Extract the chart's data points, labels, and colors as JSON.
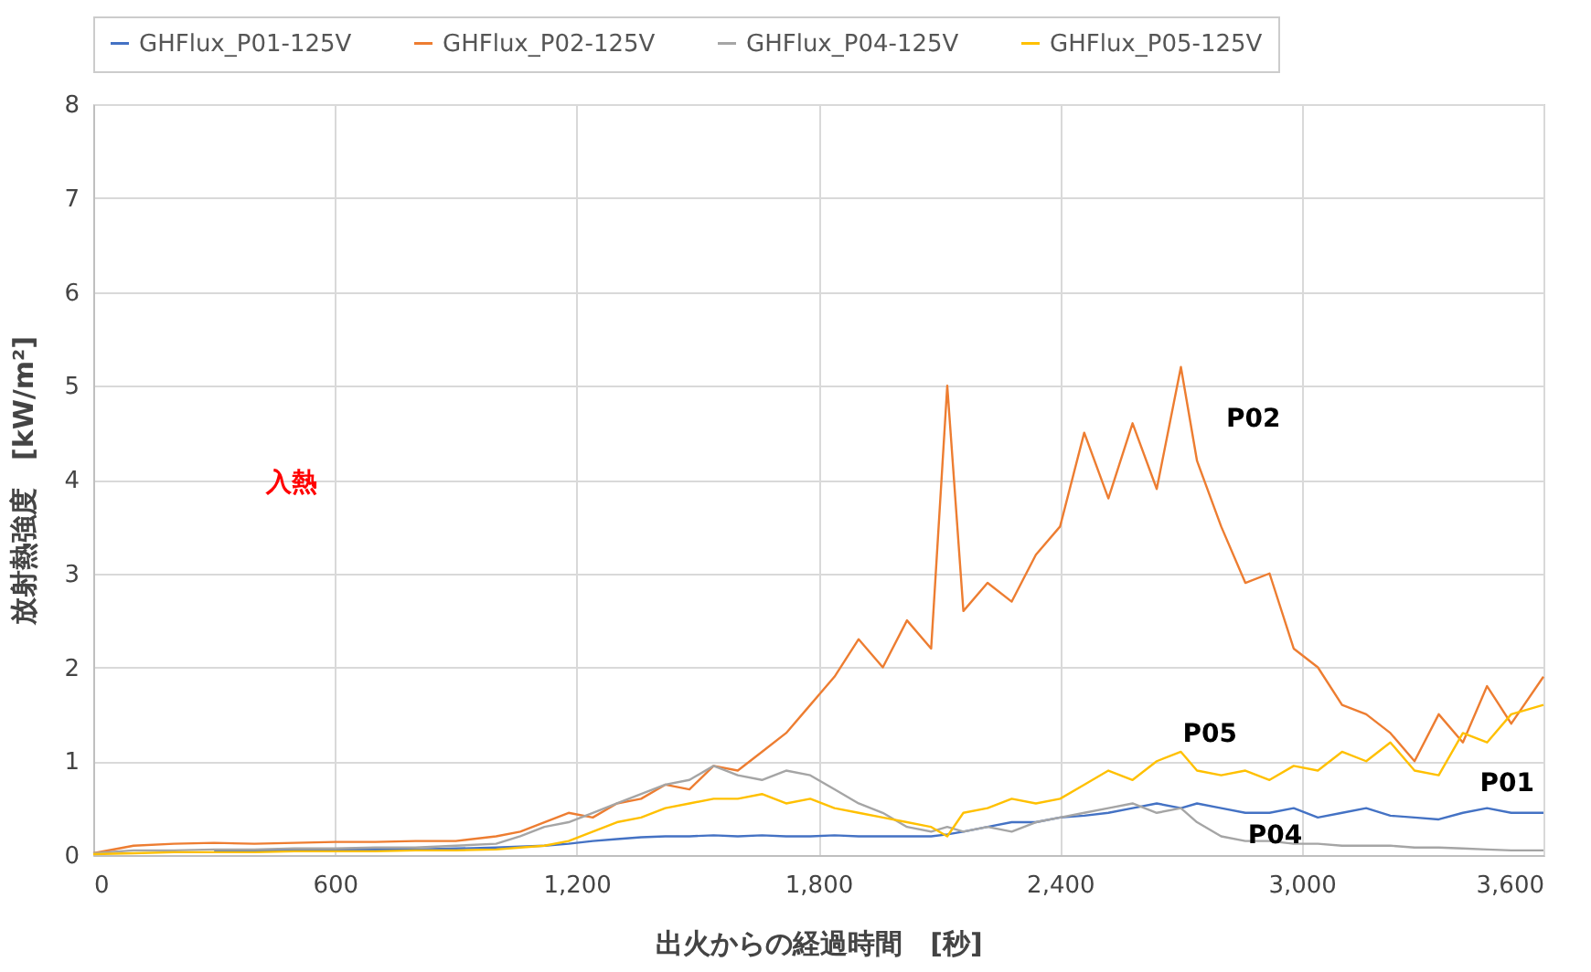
{
  "chart_data": {
    "type": "line",
    "xlabel": "出火からの経過時間　[秒]",
    "ylabel": "放射熱強度　[kW/m²]",
    "x": [
      0,
      100,
      200,
      300,
      400,
      500,
      600,
      700,
      800,
      900,
      1000,
      1060,
      1120,
      1180,
      1240,
      1300,
      1360,
      1420,
      1480,
      1540,
      1600,
      1660,
      1720,
      1780,
      1840,
      1900,
      1960,
      2020,
      2080,
      2120,
      2160,
      2220,
      2280,
      2340,
      2400,
      2460,
      2520,
      2580,
      2640,
      2700,
      2740,
      2800,
      2860,
      2920,
      2980,
      3040,
      3100,
      3160,
      3220,
      3280,
      3340,
      3400,
      3460,
      3520,
      3600
    ],
    "series": [
      {
        "name": "GHFlux_P01-125V",
        "color": "#4472c4",
        "values": [
          null,
          null,
          null,
          0.05,
          0.05,
          0.05,
          0.06,
          0.06,
          0.06,
          0.07,
          0.08,
          0.09,
          0.1,
          0.12,
          0.15,
          0.17,
          0.19,
          0.2,
          0.2,
          0.21,
          0.2,
          0.21,
          0.2,
          0.2,
          0.21,
          0.2,
          0.2,
          0.2,
          0.2,
          0.22,
          0.25,
          0.3,
          0.35,
          0.35,
          0.4,
          0.42,
          0.45,
          0.5,
          0.55,
          0.5,
          0.55,
          0.5,
          0.45,
          0.45,
          0.5,
          0.4,
          0.45,
          0.5,
          0.42,
          0.4,
          0.38,
          0.45,
          0.5,
          0.45,
          0.45
        ]
      },
      {
        "name": "GHFlux_P02-125V",
        "color": "#ed7d31",
        "values": [
          0.02,
          0.1,
          0.12,
          0.13,
          0.12,
          0.13,
          0.14,
          0.14,
          0.15,
          0.15,
          0.2,
          0.25,
          0.35,
          0.45,
          0.4,
          0.55,
          0.6,
          0.75,
          0.7,
          0.95,
          0.9,
          1.1,
          1.3,
          1.6,
          1.9,
          2.3,
          2.0,
          2.5,
          2.2,
          5.0,
          2.6,
          2.9,
          2.7,
          3.2,
          3.5,
          4.5,
          3.8,
          4.6,
          3.9,
          5.2,
          4.2,
          3.5,
          2.9,
          3.0,
          2.2,
          2.0,
          1.6,
          1.5,
          1.3,
          1.0,
          1.5,
          1.2,
          1.8,
          1.4,
          1.9
        ]
      },
      {
        "name": "GHFlux_P04-125V",
        "color": "#a5a5a5",
        "values": [
          0.02,
          0.05,
          0.05,
          0.06,
          0.06,
          0.07,
          0.07,
          0.08,
          0.08,
          0.1,
          0.12,
          0.2,
          0.3,
          0.35,
          0.45,
          0.55,
          0.65,
          0.75,
          0.8,
          0.95,
          0.85,
          0.8,
          0.9,
          0.85,
          0.7,
          0.55,
          0.45,
          0.3,
          0.25,
          0.3,
          0.25,
          0.3,
          0.25,
          0.35,
          0.4,
          0.45,
          0.5,
          0.55,
          0.45,
          0.5,
          0.35,
          0.2,
          0.15,
          0.15,
          0.12,
          0.12,
          0.1,
          0.1,
          0.1,
          0.08,
          0.08,
          0.07,
          0.06,
          0.05,
          0.05
        ]
      },
      {
        "name": "GHFlux_P05-125V",
        "color": "#ffc000",
        "values": [
          0.01,
          0.02,
          0.03,
          0.03,
          0.03,
          0.04,
          0.04,
          0.04,
          0.05,
          0.05,
          0.06,
          0.08,
          0.1,
          0.15,
          0.25,
          0.35,
          0.4,
          0.5,
          0.55,
          0.6,
          0.6,
          0.65,
          0.55,
          0.6,
          0.5,
          0.45,
          0.4,
          0.35,
          0.3,
          0.2,
          0.45,
          0.5,
          0.6,
          0.55,
          0.6,
          0.75,
          0.9,
          0.8,
          1.0,
          1.1,
          0.9,
          0.85,
          0.9,
          0.8,
          0.95,
          0.9,
          1.1,
          1.0,
          1.2,
          0.9,
          0.85,
          1.3,
          1.2,
          1.5,
          1.6
        ]
      }
    ],
    "xlim": [
      0,
      3600
    ],
    "xticks": [
      0,
      600,
      {
        "value": 1200,
        "label": "1,200"
      },
      {
        "value": 1800,
        "label": "1,800"
      },
      {
        "value": 2400,
        "label": "2,400"
      },
      {
        "value": 3000,
        "label": "3,000"
      },
      {
        "value": 3600,
        "label": "3,600"
      }
    ],
    "ylim": [
      0,
      8
    ],
    "yticks": [
      0,
      1,
      2,
      3,
      4,
      5,
      6,
      7,
      8
    ],
    "annotations": [
      "P02",
      "P05",
      "P01",
      "P04",
      "入熱"
    ],
    "grid": true,
    "legend": "top",
    "line_style": "solid",
    "marker": "none"
  }
}
